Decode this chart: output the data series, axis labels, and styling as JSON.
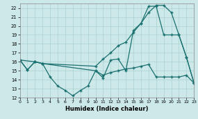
{
  "xlabel": "Humidex (Indice chaleur)",
  "bg_color": "#cce8e8",
  "grid_color": "#aad0d0",
  "line_color": "#1a7070",
  "xlim": [
    0,
    23
  ],
  "ylim": [
    12,
    22.5
  ],
  "yticks": [
    12,
    13,
    14,
    15,
    16,
    17,
    18,
    19,
    20,
    21,
    22
  ],
  "xticks": [
    0,
    1,
    2,
    3,
    4,
    5,
    6,
    7,
    8,
    9,
    10,
    11,
    12,
    13,
    14,
    15,
    16,
    17,
    18,
    19,
    20,
    21,
    22,
    23
  ],
  "series": [
    {
      "x": [
        0,
        1,
        2,
        3,
        4,
        5,
        6,
        7,
        8,
        9,
        10,
        11,
        12,
        13,
        14,
        15,
        16,
        17,
        18,
        19,
        20,
        21,
        22,
        23
      ],
      "y": [
        16.2,
        15.1,
        16.0,
        15.8,
        14.3,
        13.3,
        12.8,
        12.2,
        12.8,
        13.3,
        15.0,
        14.2,
        16.2,
        16.3,
        15.0,
        19.5,
        20.3,
        22.2,
        22.2,
        19.0,
        19.0,
        19.0,
        16.5,
        13.6
      ]
    },
    {
      "x": [
        0,
        2,
        3,
        10,
        11,
        12,
        13,
        14,
        15,
        16,
        17,
        18,
        19,
        20,
        21,
        22,
        23
      ],
      "y": [
        16.2,
        16.0,
        15.8,
        15.5,
        16.3,
        17.0,
        17.8,
        18.2,
        19.3,
        20.3,
        21.5,
        22.3,
        22.3,
        21.5,
        19.0,
        16.5,
        13.6
      ]
    },
    {
      "x": [
        0,
        1,
        2,
        3,
        10,
        11,
        12,
        13,
        14,
        15,
        16,
        17,
        18,
        19,
        20,
        21,
        22,
        23
      ],
      "y": [
        16.2,
        15.1,
        16.0,
        15.8,
        15.0,
        14.5,
        14.8,
        15.0,
        15.2,
        15.3,
        15.5,
        15.7,
        14.3,
        14.3,
        14.3,
        14.3,
        14.5,
        13.6
      ]
    }
  ]
}
